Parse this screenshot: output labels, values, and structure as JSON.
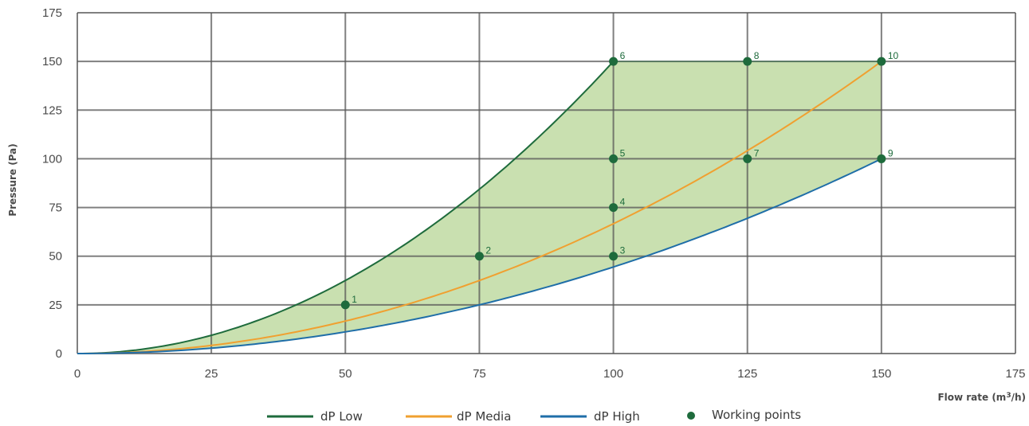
{
  "chart_data": {
    "type": "line",
    "xlabel": "Flow rate (m³/h)",
    "ylabel": "Pressure (Pa)",
    "xlim": [
      0,
      175
    ],
    "ylim": [
      0,
      175
    ],
    "xticks": [
      0,
      25,
      50,
      75,
      100,
      125,
      150,
      175
    ],
    "yticks": [
      0,
      25,
      50,
      75,
      100,
      125,
      150,
      175
    ],
    "grid": true,
    "legend_position": "bottom",
    "shaded_region": {
      "color": "#c9e0b0",
      "bounds": [
        "dP Low",
        "dP High"
      ],
      "x_range": [
        0,
        150
      ]
    },
    "series": [
      {
        "name": "dP Low",
        "color": "#1e6b3c",
        "x": [
          0,
          25,
          50,
          75,
          100
        ],
        "y": [
          0,
          9.4,
          37.5,
          84.4,
          150
        ]
      },
      {
        "name": "dP Media",
        "color": "#f0a030",
        "x": [
          0,
          25,
          50,
          75,
          100,
          125,
          150
        ],
        "y": [
          0,
          4.2,
          16.7,
          37.5,
          66.7,
          104.2,
          150
        ]
      },
      {
        "name": "dP High",
        "color": "#1f6ea8",
        "x": [
          0,
          25,
          50,
          75,
          100,
          125,
          150
        ],
        "y": [
          0,
          2.8,
          11.1,
          25.0,
          44.4,
          69.4,
          100
        ]
      }
    ],
    "working_points": {
      "name": "Working points",
      "color": "#1e6b3c",
      "points": [
        {
          "label": "1",
          "x": 50,
          "y": 25
        },
        {
          "label": "2",
          "x": 75,
          "y": 50
        },
        {
          "label": "3",
          "x": 100,
          "y": 50
        },
        {
          "label": "4",
          "x": 100,
          "y": 75
        },
        {
          "label": "5",
          "x": 100,
          "y": 100
        },
        {
          "label": "6",
          "x": 100,
          "y": 150
        },
        {
          "label": "7",
          "x": 125,
          "y": 100
        },
        {
          "label": "8",
          "x": 125,
          "y": 150
        },
        {
          "label": "9",
          "x": 150,
          "y": 100
        },
        {
          "label": "10",
          "x": 150,
          "y": 150
        }
      ]
    }
  }
}
